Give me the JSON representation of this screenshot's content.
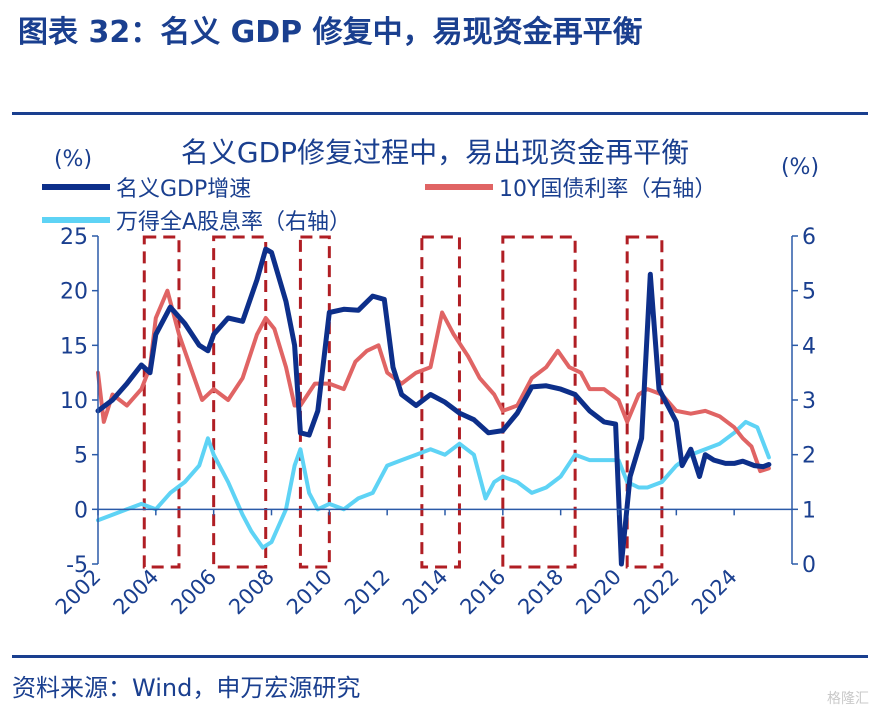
{
  "page": {
    "figure_title": "图表 32：名义 GDP 修复中，易现资金再平衡",
    "source": "资料来源：Wind，申万宏源研究",
    "watermark": "格隆汇"
  },
  "colors": {
    "brand_blue": "#1a3f8f",
    "gdp_line": "#0d2f8a",
    "bond_line": "#e06464",
    "dividend_line": "#5ed3f5",
    "box": "#b01e24"
  },
  "chart_data": {
    "type": "line",
    "title": "名义GDP修复过程中，易出现资金再平衡",
    "left_unit": "(%)",
    "right_unit": "(%)",
    "x_ticks": [
      "2002",
      "2004",
      "2006",
      "2008",
      "2010",
      "2012",
      "2014",
      "2016",
      "2018",
      "2020",
      "2022",
      "2024"
    ],
    "y_left": {
      "min": -5,
      "max": 25,
      "ticks": [
        "25",
        "20",
        "15",
        "10",
        "5",
        "0",
        "-5"
      ]
    },
    "y_right": {
      "min": 0,
      "max": 6,
      "ticks": [
        "6",
        "5",
        "4",
        "3",
        "2",
        "1",
        "0"
      ]
    },
    "legend": [
      "名义GDP增速",
      "10Y国债利率（右轴）",
      "万得全A股息率（右轴）"
    ],
    "series": [
      {
        "name": "名义GDP增速",
        "axis": "left",
        "color": "#0d2f8a",
        "points": [
          [
            2002.0,
            9.0
          ],
          [
            2002.5,
            10.0
          ],
          [
            2003.0,
            11.5
          ],
          [
            2003.5,
            13.2
          ],
          [
            2003.8,
            12.5
          ],
          [
            2004.0,
            16.0
          ],
          [
            2004.5,
            18.5
          ],
          [
            2005.0,
            17.0
          ],
          [
            2005.5,
            15.0
          ],
          [
            2005.8,
            14.5
          ],
          [
            2006.0,
            16.0
          ],
          [
            2006.5,
            17.5
          ],
          [
            2007.0,
            17.2
          ],
          [
            2007.5,
            21.0
          ],
          [
            2007.8,
            23.8
          ],
          [
            2008.0,
            23.5
          ],
          [
            2008.5,
            19.0
          ],
          [
            2008.8,
            15.0
          ],
          [
            2009.0,
            7.0
          ],
          [
            2009.3,
            6.8
          ],
          [
            2009.6,
            9.0
          ],
          [
            2010.0,
            18.0
          ],
          [
            2010.5,
            18.3
          ],
          [
            2011.0,
            18.2
          ],
          [
            2011.5,
            19.5
          ],
          [
            2011.9,
            19.2
          ],
          [
            2012.2,
            13.0
          ],
          [
            2012.5,
            10.5
          ],
          [
            2013.0,
            9.5
          ],
          [
            2013.5,
            10.5
          ],
          [
            2014.0,
            9.8
          ],
          [
            2014.5,
            8.8
          ],
          [
            2015.0,
            8.2
          ],
          [
            2015.5,
            7.0
          ],
          [
            2016.0,
            7.2
          ],
          [
            2016.5,
            8.8
          ],
          [
            2017.0,
            11.2
          ],
          [
            2017.5,
            11.3
          ],
          [
            2018.0,
            11.0
          ],
          [
            2018.5,
            10.5
          ],
          [
            2019.0,
            9.0
          ],
          [
            2019.5,
            8.0
          ],
          [
            2019.9,
            7.8
          ],
          [
            2020.1,
            -5.0
          ],
          [
            2020.4,
            3.0
          ],
          [
            2020.8,
            6.5
          ],
          [
            2021.1,
            21.5
          ],
          [
            2021.4,
            11.0
          ],
          [
            2021.7,
            9.5
          ],
          [
            2022.0,
            8.0
          ],
          [
            2022.2,
            4.0
          ],
          [
            2022.5,
            5.5
          ],
          [
            2022.8,
            3.0
          ],
          [
            2023.0,
            5.0
          ],
          [
            2023.3,
            4.5
          ],
          [
            2023.7,
            4.2
          ],
          [
            2024.0,
            4.2
          ],
          [
            2024.3,
            4.4
          ],
          [
            2024.7,
            4.0
          ],
          [
            2025.0,
            3.9
          ],
          [
            2025.2,
            4.1
          ]
        ]
      },
      {
        "name": "10Y国债利率（右轴）",
        "axis": "right",
        "color": "#e06464",
        "points": [
          [
            2002.0,
            3.5
          ],
          [
            2002.2,
            2.6
          ],
          [
            2002.5,
            3.1
          ],
          [
            2003.0,
            2.9
          ],
          [
            2003.5,
            3.2
          ],
          [
            2003.8,
            3.6
          ],
          [
            2004.0,
            4.5
          ],
          [
            2004.4,
            5.0
          ],
          [
            2004.8,
            4.2
          ],
          [
            2005.2,
            3.6
          ],
          [
            2005.6,
            3.0
          ],
          [
            2006.0,
            3.2
          ],
          [
            2006.5,
            3.0
          ],
          [
            2007.0,
            3.4
          ],
          [
            2007.5,
            4.2
          ],
          [
            2007.8,
            4.5
          ],
          [
            2008.1,
            4.3
          ],
          [
            2008.5,
            3.6
          ],
          [
            2008.8,
            2.9
          ],
          [
            2009.0,
            2.9
          ],
          [
            2009.5,
            3.3
          ],
          [
            2010.0,
            3.3
          ],
          [
            2010.5,
            3.2
          ],
          [
            2010.9,
            3.7
          ],
          [
            2011.3,
            3.9
          ],
          [
            2011.7,
            4.0
          ],
          [
            2012.0,
            3.5
          ],
          [
            2012.5,
            3.3
          ],
          [
            2013.0,
            3.5
          ],
          [
            2013.5,
            3.6
          ],
          [
            2013.9,
            4.6
          ],
          [
            2014.3,
            4.2
          ],
          [
            2014.8,
            3.8
          ],
          [
            2015.2,
            3.4
          ],
          [
            2015.7,
            3.1
          ],
          [
            2016.0,
            2.8
          ],
          [
            2016.5,
            2.9
          ],
          [
            2017.0,
            3.4
          ],
          [
            2017.5,
            3.6
          ],
          [
            2017.9,
            3.9
          ],
          [
            2018.3,
            3.6
          ],
          [
            2018.7,
            3.5
          ],
          [
            2019.0,
            3.2
          ],
          [
            2019.5,
            3.2
          ],
          [
            2020.0,
            3.0
          ],
          [
            2020.3,
            2.6
          ],
          [
            2020.7,
            3.1
          ],
          [
            2021.0,
            3.2
          ],
          [
            2021.5,
            3.1
          ],
          [
            2022.0,
            2.8
          ],
          [
            2022.5,
            2.75
          ],
          [
            2023.0,
            2.8
          ],
          [
            2023.5,
            2.7
          ],
          [
            2024.0,
            2.5
          ],
          [
            2024.3,
            2.3
          ],
          [
            2024.6,
            2.15
          ],
          [
            2024.9,
            1.7
          ],
          [
            2025.2,
            1.75
          ]
        ]
      },
      {
        "name": "万得全A股息率（右轴）",
        "axis": "right",
        "color": "#5ed3f5",
        "points": [
          [
            2002.0,
            0.8
          ],
          [
            2002.5,
            0.9
          ],
          [
            2003.0,
            1.0
          ],
          [
            2003.5,
            1.1
          ],
          [
            2004.0,
            1.0
          ],
          [
            2004.5,
            1.3
          ],
          [
            2005.0,
            1.5
          ],
          [
            2005.5,
            1.8
          ],
          [
            2005.8,
            2.3
          ],
          [
            2006.0,
            2.0
          ],
          [
            2006.5,
            1.5
          ],
          [
            2007.0,
            0.9
          ],
          [
            2007.3,
            0.6
          ],
          [
            2007.7,
            0.3
          ],
          [
            2008.0,
            0.4
          ],
          [
            2008.5,
            1.0
          ],
          [
            2008.8,
            1.8
          ],
          [
            2009.0,
            2.1
          ],
          [
            2009.3,
            1.3
          ],
          [
            2009.6,
            1.0
          ],
          [
            2010.0,
            1.1
          ],
          [
            2010.5,
            1.0
          ],
          [
            2011.0,
            1.2
          ],
          [
            2011.5,
            1.3
          ],
          [
            2012.0,
            1.8
          ],
          [
            2012.5,
            1.9
          ],
          [
            2013.0,
            2.0
          ],
          [
            2013.5,
            2.1
          ],
          [
            2014.0,
            2.0
          ],
          [
            2014.5,
            2.2
          ],
          [
            2015.0,
            2.0
          ],
          [
            2015.4,
            1.2
          ],
          [
            2015.7,
            1.5
          ],
          [
            2016.0,
            1.6
          ],
          [
            2016.5,
            1.5
          ],
          [
            2017.0,
            1.3
          ],
          [
            2017.5,
            1.4
          ],
          [
            2018.0,
            1.6
          ],
          [
            2018.5,
            2.0
          ],
          [
            2019.0,
            1.9
          ],
          [
            2019.5,
            1.9
          ],
          [
            2020.0,
            1.9
          ],
          [
            2020.3,
            1.5
          ],
          [
            2020.7,
            1.4
          ],
          [
            2021.0,
            1.4
          ],
          [
            2021.5,
            1.5
          ],
          [
            2022.0,
            1.8
          ],
          [
            2022.5,
            2.0
          ],
          [
            2023.0,
            2.1
          ],
          [
            2023.5,
            2.2
          ],
          [
            2024.0,
            2.4
          ],
          [
            2024.4,
            2.6
          ],
          [
            2024.8,
            2.5
          ],
          [
            2025.2,
            1.95
          ]
        ]
      }
    ],
    "highlight_boxes": [
      [
        2003.6,
        2004.8
      ],
      [
        2006.0,
        2007.8
      ],
      [
        2009.0,
        2010.0
      ],
      [
        2013.2,
        2014.5
      ],
      [
        2016.0,
        2018.5
      ],
      [
        2020.3,
        2021.5
      ]
    ]
  }
}
